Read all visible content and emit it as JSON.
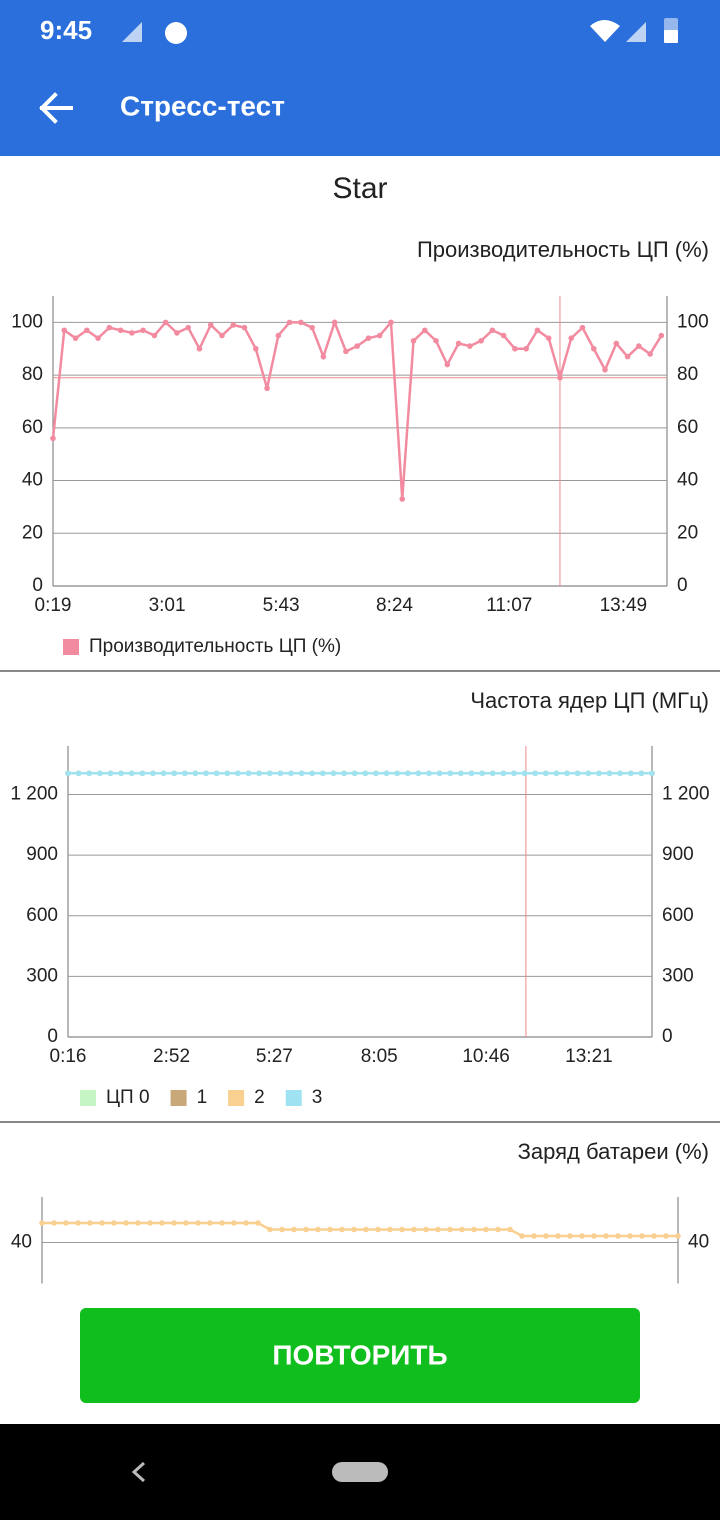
{
  "status_bar": {
    "time": "9:45"
  },
  "app_bar": {
    "title": "Стресс-тест"
  },
  "device_name": "Star",
  "button": {
    "label": "ПОВТОРИТЬ"
  },
  "chart_data": [
    {
      "type": "line",
      "title": "Производительность ЦП (%)",
      "x": [
        19,
        35,
        51,
        67,
        83,
        99,
        115,
        131,
        147,
        163,
        179,
        195,
        211,
        227,
        243,
        259,
        275,
        291,
        307,
        323,
        339,
        355,
        371,
        387,
        403,
        419,
        435,
        451,
        467,
        483,
        499,
        515,
        531,
        547,
        563,
        579,
        595,
        611,
        627,
        643,
        659,
        675,
        691,
        707,
        723,
        739,
        755,
        771,
        787,
        803,
        819,
        835,
        851,
        867,
        883
      ],
      "series": [
        {
          "name": "Производительность ЦП (%)",
          "color": "#f28ba0",
          "values": [
            56,
            97,
            94,
            97,
            94,
            98,
            97,
            96,
            97,
            95,
            100,
            96,
            98,
            90,
            99,
            95,
            99,
            98,
            90,
            75,
            95,
            100,
            100,
            98,
            87,
            100,
            89,
            91,
            94,
            95,
            100,
            33,
            93,
            97,
            93,
            84,
            92,
            91,
            93,
            97,
            95,
            90,
            90,
            97,
            94,
            79,
            94,
            98,
            90,
            82,
            92,
            87,
            91,
            88,
            95
          ]
        }
      ],
      "xlim": [
        19,
        891
      ],
      "xticks": [
        {
          "value": 19,
          "label": "0:19"
        },
        {
          "value": 181,
          "label": "3:01"
        },
        {
          "value": 343,
          "label": "5:43"
        },
        {
          "value": 504,
          "label": "8:24"
        },
        {
          "value": 667,
          "label": "11:07"
        },
        {
          "value": 829,
          "label": "13:49"
        }
      ],
      "ylim": [
        0,
        110
      ],
      "yticks": [
        0,
        20,
        40,
        60,
        80,
        100
      ],
      "grid": true,
      "legend": true,
      "marker": {
        "x": 739,
        "y": 79
      }
    },
    {
      "type": "line",
      "title": "Частота ядер ЦП (МГц)",
      "x": [
        16,
        32,
        48,
        64,
        80,
        96,
        112,
        128,
        144,
        160,
        176,
        192,
        208,
        224,
        240,
        256,
        272,
        288,
        304,
        320,
        336,
        352,
        368,
        384,
        400,
        416,
        432,
        448,
        464,
        480,
        496,
        512,
        528,
        544,
        560,
        576,
        592,
        608,
        624,
        640,
        656,
        672,
        688,
        704,
        720,
        736,
        752,
        768,
        784,
        800,
        816,
        832,
        848,
        864,
        880,
        896
      ],
      "series": [
        {
          "name": "ЦП 0",
          "color": "#c5f5c5",
          "values": [
            1305,
            1305,
            1305,
            1305,
            1305,
            1305,
            1305,
            1305,
            1305,
            1305,
            1305,
            1305,
            1305,
            1305,
            1305,
            1305,
            1305,
            1305,
            1305,
            1305,
            1305,
            1305,
            1305,
            1305,
            1305,
            1305,
            1305,
            1305,
            1305,
            1305,
            1305,
            1305,
            1305,
            1305,
            1305,
            1305,
            1305,
            1305,
            1305,
            1305,
            1305,
            1305,
            1305,
            1305,
            1305,
            1305,
            1305,
            1305,
            1305,
            1305,
            1305,
            1305,
            1305,
            1305,
            1305,
            1305
          ]
        },
        {
          "name": "1",
          "color": "#c8a878",
          "values": [
            1305,
            1305,
            1305,
            1305,
            1305,
            1305,
            1305,
            1305,
            1305,
            1305,
            1305,
            1305,
            1305,
            1305,
            1305,
            1305,
            1305,
            1305,
            1305,
            1305,
            1305,
            1305,
            1305,
            1305,
            1305,
            1305,
            1305,
            1305,
            1305,
            1305,
            1305,
            1305,
            1305,
            1305,
            1305,
            1305,
            1305,
            1305,
            1305,
            1305,
            1305,
            1305,
            1305,
            1305,
            1305,
            1305,
            1305,
            1305,
            1305,
            1305,
            1305,
            1305,
            1305,
            1305,
            1305,
            1305
          ]
        },
        {
          "name": "2",
          "color": "#f9d08f",
          "values": [
            1305,
            1305,
            1305,
            1305,
            1305,
            1305,
            1305,
            1305,
            1305,
            1305,
            1305,
            1305,
            1305,
            1305,
            1305,
            1305,
            1305,
            1305,
            1305,
            1305,
            1305,
            1305,
            1305,
            1305,
            1305,
            1305,
            1305,
            1305,
            1305,
            1305,
            1305,
            1305,
            1305,
            1305,
            1305,
            1305,
            1305,
            1305,
            1305,
            1305,
            1305,
            1305,
            1305,
            1305,
            1305,
            1305,
            1305,
            1305,
            1305,
            1305,
            1305,
            1305,
            1305,
            1305,
            1305,
            1305
          ]
        },
        {
          "name": "3",
          "color": "#9fe3f3",
          "values": [
            1305,
            1305,
            1305,
            1305,
            1305,
            1305,
            1305,
            1305,
            1305,
            1305,
            1305,
            1305,
            1305,
            1305,
            1305,
            1305,
            1305,
            1305,
            1305,
            1305,
            1305,
            1305,
            1305,
            1305,
            1305,
            1305,
            1305,
            1305,
            1305,
            1305,
            1305,
            1305,
            1305,
            1305,
            1305,
            1305,
            1305,
            1305,
            1305,
            1305,
            1305,
            1305,
            1305,
            1305,
            1305,
            1305,
            1305,
            1305,
            1305,
            1305,
            1305,
            1305,
            1305,
            1305,
            1305,
            1305
          ]
        }
      ],
      "xlim": [
        16,
        896
      ],
      "xticks": [
        {
          "value": 16,
          "label": "0:16"
        },
        {
          "value": 172,
          "label": "2:52"
        },
        {
          "value": 327,
          "label": "5:27"
        },
        {
          "value": 485,
          "label": "8:05"
        },
        {
          "value": 646,
          "label": "10:46"
        },
        {
          "value": 801,
          "label": "13:21"
        }
      ],
      "ylim": [
        0,
        1440
      ],
      "yticks": [
        0,
        300,
        600,
        900,
        {
          "value": 1200,
          "label": "1 200"
        }
      ],
      "grid": true,
      "legend": true,
      "marker": {
        "x": 706
      }
    },
    {
      "type": "line",
      "title": "Заряд батареи (%)",
      "x": [
        16,
        32,
        48,
        64,
        80,
        96,
        112,
        128,
        144,
        160,
        176,
        192,
        208,
        224,
        240,
        256,
        272,
        288,
        304,
        320,
        336,
        352,
        368,
        384,
        400,
        416,
        432,
        448,
        464,
        480,
        496,
        512,
        528,
        544,
        560,
        576,
        592,
        608,
        624,
        640,
        656,
        672,
        688,
        704,
        720,
        736,
        752,
        768,
        784,
        800,
        816,
        832,
        848,
        864
      ],
      "series": [
        {
          "name": "Заряд батареи (%)",
          "color": "#f9d08f",
          "values": [
            43,
            43,
            43,
            43,
            43,
            43,
            43,
            43,
            43,
            43,
            43,
            43,
            43,
            43,
            43,
            43,
            43,
            43,
            43,
            42,
            42,
            42,
            42,
            42,
            42,
            42,
            42,
            42,
            42,
            42,
            42,
            42,
            42,
            42,
            42,
            42,
            42,
            42,
            42,
            42,
            41,
            41,
            41,
            41,
            41,
            41,
            41,
            41,
            41,
            41,
            41,
            41,
            41,
            41
          ]
        }
      ],
      "xlim": [
        16,
        864
      ],
      "ylim": [
        34,
        47
      ],
      "yticks": [
        40
      ],
      "grid": true,
      "legend": false
    }
  ]
}
